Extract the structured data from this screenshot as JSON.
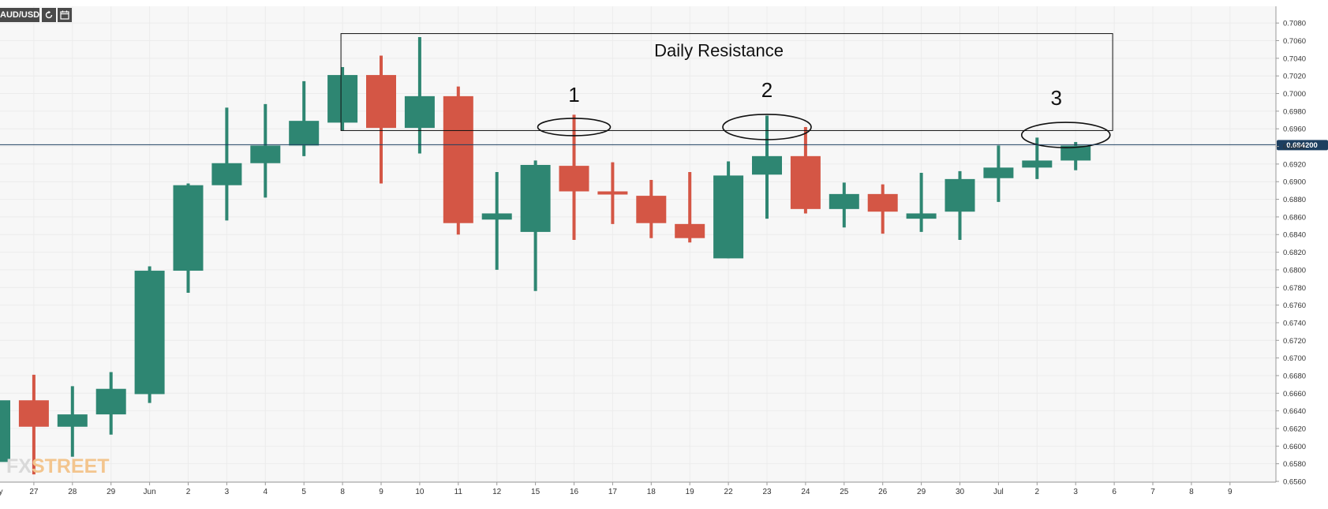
{
  "symbol": "AUD/USD",
  "toolbar": {
    "refresh_icon": "refresh-icon",
    "calendar_icon": "calendar-icon"
  },
  "watermark": {
    "prefix": "FX",
    "suffix": "STREET"
  },
  "current_price_label": "0.694200",
  "colors": {
    "up": "#2e8672",
    "down": "#d45645",
    "price_line": "#1d3f60",
    "grid": "#ececec"
  },
  "chart_data": {
    "type": "candlestick",
    "y_axis": {
      "range": [
        0.656,
        0.709
      ],
      "ticks": [
        "0.7080",
        "0.7060",
        "0.7040",
        "0.7020",
        "0.7000",
        "0.6980",
        "0.6960",
        "0.6940",
        "0.6920",
        "0.6900",
        "0.6880",
        "0.6860",
        "0.6840",
        "0.6820",
        "0.6800",
        "0.6780",
        "0.6760",
        "0.6740",
        "0.6720",
        "0.6700",
        "0.6680",
        "0.6660",
        "0.6640",
        "0.6620",
        "0.6600",
        "0.6580",
        "0.6560"
      ],
      "position": "right"
    },
    "x_axis": {
      "labels": [
        "May",
        "27",
        "28",
        "29",
        "Jun",
        "2",
        "3",
        "4",
        "5",
        "8",
        "9",
        "10",
        "11",
        "12",
        "15",
        "16",
        "17",
        "18",
        "19",
        "22",
        "23",
        "24",
        "25",
        "26",
        "29",
        "30",
        "Jul",
        "2",
        "3",
        "6",
        "7",
        "8",
        "9"
      ]
    },
    "grid": true,
    "current_price": 0.6942,
    "candles": [
      {
        "date": "May 24",
        "open": 0.6582,
        "high": 0.6652,
        "low": 0.6578,
        "close": 0.6652
      },
      {
        "date": "27",
        "open": 0.6652,
        "high": 0.6681,
        "low": 0.6568,
        "close": 0.6622
      },
      {
        "date": "28",
        "open": 0.6622,
        "high": 0.6668,
        "low": 0.6588,
        "close": 0.6636
      },
      {
        "date": "29",
        "open": 0.6636,
        "high": 0.6684,
        "low": 0.6613,
        "close": 0.6665
      },
      {
        "date": "Jun 1",
        "open": 0.6659,
        "high": 0.6804,
        "low": 0.6649,
        "close": 0.6799
      },
      {
        "date": "2",
        "open": 0.6799,
        "high": 0.6898,
        "low": 0.6774,
        "close": 0.6896
      },
      {
        "date": "3",
        "open": 0.6896,
        "high": 0.6984,
        "low": 0.6856,
        "close": 0.6921
      },
      {
        "date": "4",
        "open": 0.6921,
        "high": 0.6988,
        "low": 0.6882,
        "close": 0.6941
      },
      {
        "date": "5",
        "open": 0.6941,
        "high": 0.7014,
        "low": 0.6929,
        "close": 0.6969
      },
      {
        "date": "8",
        "open": 0.6967,
        "high": 0.703,
        "low": 0.6958,
        "close": 0.7021
      },
      {
        "date": "9",
        "open": 0.7021,
        "high": 0.7043,
        "low": 0.6898,
        "close": 0.6961
      },
      {
        "date": "10",
        "open": 0.6961,
        "high": 0.7064,
        "low": 0.6932,
        "close": 0.6997
      },
      {
        "date": "11",
        "open": 0.6997,
        "high": 0.7008,
        "low": 0.684,
        "close": 0.6853
      },
      {
        "date": "12",
        "open": 0.6857,
        "high": 0.6911,
        "low": 0.68,
        "close": 0.6864
      },
      {
        "date": "15",
        "open": 0.6843,
        "high": 0.6924,
        "low": 0.6776,
        "close": 0.6919
      },
      {
        "date": "16",
        "open": 0.6918,
        "high": 0.6976,
        "low": 0.6834,
        "close": 0.6889
      },
      {
        "date": "17",
        "open": 0.6889,
        "high": 0.6922,
        "low": 0.6852,
        "close": 0.6886
      },
      {
        "date": "18",
        "open": 0.6884,
        "high": 0.6902,
        "low": 0.6836,
        "close": 0.6853
      },
      {
        "date": "19",
        "open": 0.6852,
        "high": 0.6911,
        "low": 0.6831,
        "close": 0.6836
      },
      {
        "date": "22",
        "open": 0.6813,
        "high": 0.6923,
        "low": 0.6813,
        "close": 0.6907
      },
      {
        "date": "23",
        "open": 0.6908,
        "high": 0.6975,
        "low": 0.6858,
        "close": 0.6929
      },
      {
        "date": "24",
        "open": 0.6929,
        "high": 0.6962,
        "low": 0.6864,
        "close": 0.6869
      },
      {
        "date": "25",
        "open": 0.6869,
        "high": 0.6899,
        "low": 0.6848,
        "close": 0.6886
      },
      {
        "date": "26",
        "open": 0.6886,
        "high": 0.6897,
        "low": 0.6841,
        "close": 0.6866
      },
      {
        "date": "29",
        "open": 0.6858,
        "high": 0.691,
        "low": 0.6843,
        "close": 0.6864
      },
      {
        "date": "30",
        "open": 0.6866,
        "high": 0.6912,
        "low": 0.6834,
        "close": 0.6903
      },
      {
        "date": "Jul 1",
        "open": 0.6904,
        "high": 0.6941,
        "low": 0.6877,
        "close": 0.6916
      },
      {
        "date": "2",
        "open": 0.6916,
        "high": 0.695,
        "low": 0.6903,
        "close": 0.6924
      },
      {
        "date": "3",
        "open": 0.6924,
        "high": 0.6945,
        "low": 0.6913,
        "close": 0.6941
      }
    ],
    "annotations": {
      "resistance_box": {
        "label": "Daily Resistance",
        "price_top": 0.7068,
        "price_bottom": 0.6958,
        "from_index": 9,
        "to_index": 29
      },
      "touches": [
        {
          "label": "1",
          "index": 15,
          "price": 0.6962
        },
        {
          "label": "2",
          "index": 20,
          "price": 0.6962
        },
        {
          "label": "3",
          "index": 27.5,
          "price": 0.6953
        }
      ]
    }
  }
}
